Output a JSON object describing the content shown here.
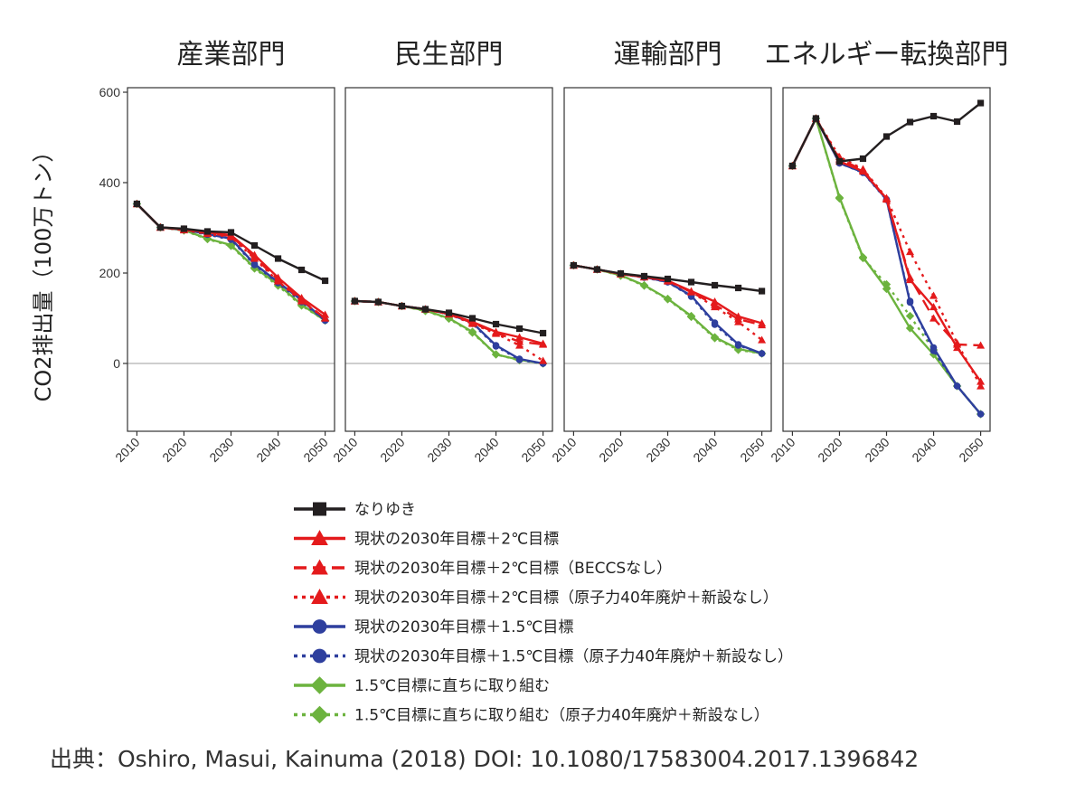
{
  "chart_data": {
    "type": "line",
    "ylabel": "CO2排出量（100万トン）",
    "ylim": [
      -150,
      610
    ],
    "yticks": [
      "0",
      "200",
      "400",
      "600"
    ],
    "ytick_values": [
      0,
      200,
      400,
      600
    ],
    "xlim": [
      2008,
      2052
    ],
    "xticks": [
      "2010",
      "2020",
      "2030",
      "2040",
      "2050"
    ],
    "xtick_values": [
      2010,
      2020,
      2030,
      2040,
      2050
    ],
    "x": [
      2010,
      2015,
      2020,
      2025,
      2030,
      2035,
      2040,
      2045,
      2050
    ],
    "grid": false,
    "legend_placement": "bottom",
    "reference_line_y": 0,
    "source": "出典：Oshiro, Masui, Kainuma (2018) DOI: 10.1080/17583004.2017.1396842",
    "series": [
      {
        "name": "なりゆき",
        "color": "#231f20",
        "line": "solid",
        "marker": "square"
      },
      {
        "name": "現状の2030年目標＋2℃目標",
        "color": "#e41a1c",
        "line": "solid",
        "marker": "triangle"
      },
      {
        "name": "現状の2030年目標＋2℃目標（BECCSなし）",
        "color": "#e41a1c",
        "line": "dashed",
        "marker": "triangle"
      },
      {
        "name": "現状の2030年目標＋2℃目標（原子力40年廃炉＋新設なし）",
        "color": "#e41a1c",
        "line": "dotted",
        "marker": "triangle"
      },
      {
        "name": "現状の2030年目標＋1.5℃目標",
        "color": "#2e3f9e",
        "line": "solid",
        "marker": "circle"
      },
      {
        "name": "現状の2030年目標＋1.5℃目標（原子力40年廃炉＋新設なし）",
        "color": "#2e3f9e",
        "line": "dotted",
        "marker": "circle"
      },
      {
        "name": "1.5℃目標に直ちに取り組む",
        "color": "#6cb33e",
        "line": "solid",
        "marker": "diamond"
      },
      {
        "name": "1.5℃目標に直ちに取り組む（原子力40年廃炉＋新設なし）",
        "color": "#6cb33e",
        "line": "dotted",
        "marker": "diamond"
      }
    ],
    "panels": [
      {
        "title": "産業部門",
        "values": [
          [
            353,
            301,
            298,
            292,
            290,
            261,
            232,
            207,
            183
          ],
          [
            353,
            301,
            297,
            290,
            284,
            240,
            190,
            145,
            108
          ],
          [
            353,
            301,
            296,
            288,
            282,
            235,
            185,
            140,
            100
          ],
          [
            353,
            301,
            295,
            287,
            280,
            232,
            182,
            138,
            100
          ],
          [
            353,
            301,
            296,
            286,
            276,
            220,
            180,
            140,
            95
          ],
          [
            353,
            301,
            295,
            285,
            274,
            218,
            178,
            136,
            95
          ],
          [
            353,
            301,
            295,
            276,
            262,
            212,
            175,
            130,
            95
          ],
          [
            353,
            301,
            294,
            275,
            260,
            210,
            172,
            128,
            95
          ]
        ]
      },
      {
        "title": "民生部門",
        "values": [
          [
            138,
            136,
            127,
            120,
            112,
            100,
            87,
            77,
            67
          ],
          [
            138,
            136,
            127,
            120,
            110,
            92,
            70,
            58,
            44
          ],
          [
            138,
            136,
            127,
            120,
            109,
            90,
            68,
            48,
            42
          ],
          [
            138,
            136,
            127,
            120,
            109,
            88,
            66,
            40,
            6
          ],
          [
            138,
            136,
            127,
            120,
            109,
            90,
            40,
            10,
            0
          ],
          [
            138,
            136,
            127,
            120,
            109,
            88,
            38,
            8,
            0
          ],
          [
            138,
            136,
            127,
            117,
            100,
            70,
            20,
            8,
            0
          ],
          [
            138,
            136,
            127,
            116,
            99,
            68,
            20,
            7,
            0
          ]
        ]
      },
      {
        "title": "運輸部門",
        "values": [
          [
            217,
            208,
            199,
            193,
            187,
            180,
            173,
            167,
            160
          ],
          [
            217,
            208,
            198,
            192,
            183,
            160,
            137,
            104,
            89
          ],
          [
            217,
            208,
            198,
            191,
            183,
            158,
            130,
            98,
            85
          ],
          [
            217,
            208,
            198,
            191,
            182,
            158,
            125,
            92,
            52
          ],
          [
            217,
            208,
            198,
            191,
            180,
            150,
            90,
            42,
            22
          ],
          [
            217,
            208,
            198,
            190,
            180,
            148,
            86,
            40,
            22
          ],
          [
            217,
            208,
            195,
            173,
            143,
            105,
            58,
            32,
            22
          ],
          [
            217,
            208,
            194,
            172,
            142,
            103,
            56,
            30,
            22
          ]
        ]
      },
      {
        "title": "エネルギー転換部門",
        "values": [
          [
            437,
            542,
            447,
            453,
            502,
            534,
            547,
            535,
            576
          ],
          [
            437,
            542,
            447,
            425,
            365,
            185,
            125,
            35,
            -40
          ],
          [
            437,
            542,
            452,
            428,
            363,
            190,
            100,
            42,
            40
          ],
          [
            437,
            542,
            457,
            430,
            366,
            247,
            150,
            45,
            -50
          ],
          [
            437,
            542,
            443,
            423,
            363,
            135,
            35,
            -50,
            -112
          ],
          [
            437,
            542,
            443,
            422,
            362,
            138,
            28,
            -50,
            -112
          ],
          [
            437,
            542,
            367,
            235,
            165,
            78,
            20,
            -50,
            -112
          ],
          [
            437,
            542,
            365,
            233,
            175,
            105,
            30,
            -50,
            -112
          ]
        ]
      }
    ]
  }
}
